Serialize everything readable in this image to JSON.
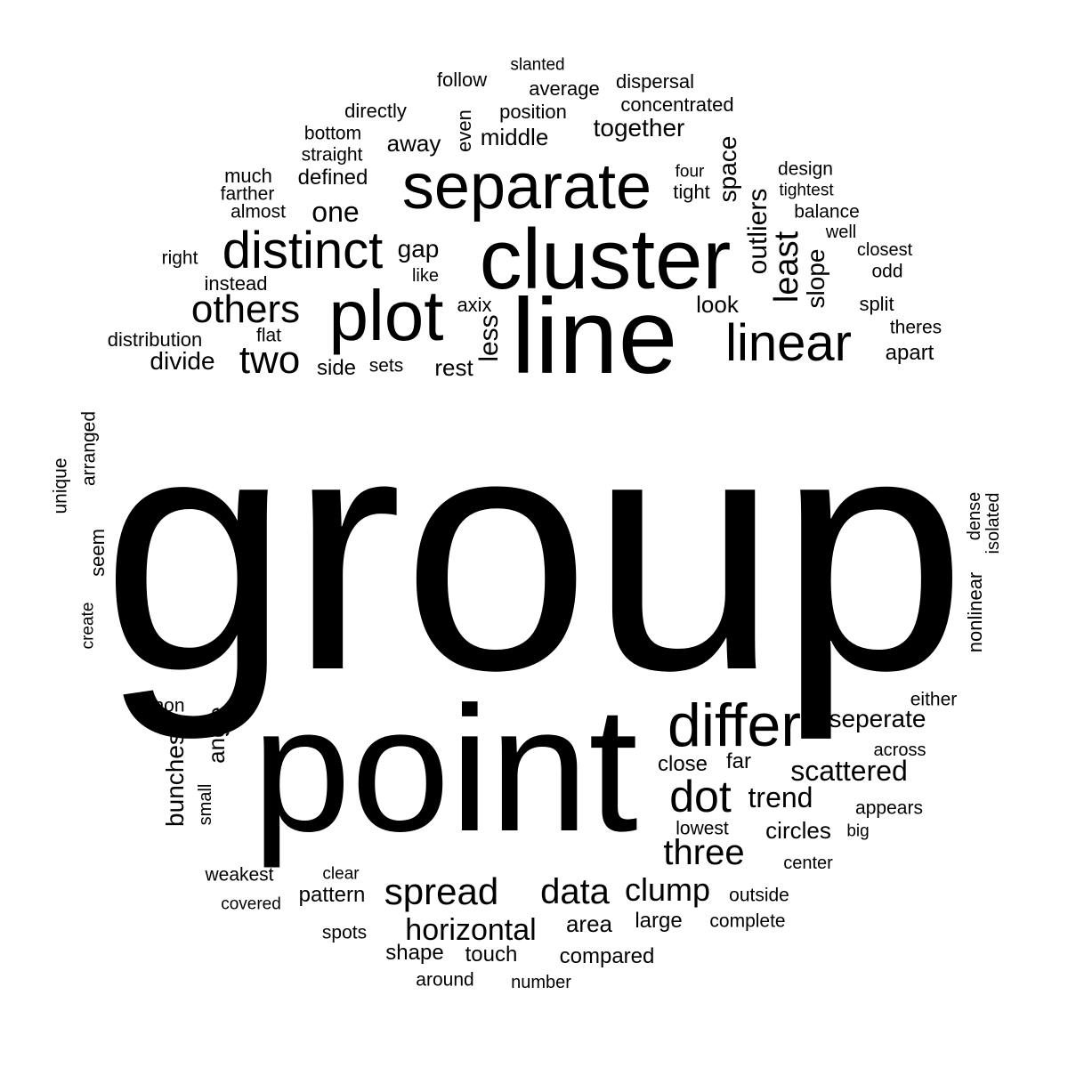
{
  "text_color": "#000000",
  "background_color": "#ffffff",
  "words": [
    {
      "text": "group",
      "rotated": false
    },
    {
      "text": "point",
      "rotated": false
    },
    {
      "text": "line",
      "rotated": false
    },
    {
      "text": "cluster",
      "rotated": false
    },
    {
      "text": "separate",
      "rotated": false
    },
    {
      "text": "plot",
      "rotated": false
    },
    {
      "text": "distinct",
      "rotated": false
    },
    {
      "text": "linear",
      "rotated": false
    },
    {
      "text": "differ",
      "rotated": false
    },
    {
      "text": "others",
      "rotated": false
    },
    {
      "text": "two",
      "rotated": false
    },
    {
      "text": "dot",
      "rotated": false
    },
    {
      "text": "three",
      "rotated": false
    },
    {
      "text": "spread",
      "rotated": false
    },
    {
      "text": "data",
      "rotated": false
    },
    {
      "text": "clump",
      "rotated": false
    },
    {
      "text": "horizontal",
      "rotated": false
    },
    {
      "text": "least",
      "rotated": true
    },
    {
      "text": "outliers",
      "rotated": true
    },
    {
      "text": "less",
      "rotated": true
    },
    {
      "text": "slope",
      "rotated": true
    },
    {
      "text": "space",
      "rotated": true
    },
    {
      "text": "together",
      "rotated": false
    },
    {
      "text": "trend",
      "rotated": false
    },
    {
      "text": "scattered",
      "rotated": false
    },
    {
      "text": "seperate",
      "rotated": false
    },
    {
      "text": "one",
      "rotated": false
    },
    {
      "text": "gap",
      "rotated": false
    },
    {
      "text": "middle",
      "rotated": false
    },
    {
      "text": "away",
      "rotated": false
    },
    {
      "text": "divide",
      "rotated": false
    },
    {
      "text": "look",
      "rotated": false
    },
    {
      "text": "rest",
      "rotated": false
    },
    {
      "text": "angle",
      "rotated": true
    },
    {
      "text": "bunches",
      "rotated": true
    },
    {
      "text": "circles",
      "rotated": false
    },
    {
      "text": "defined",
      "rotated": false
    },
    {
      "text": "area",
      "rotated": false
    },
    {
      "text": "large",
      "rotated": false
    },
    {
      "text": "close",
      "rotated": false
    },
    {
      "text": "far",
      "rotated": false
    },
    {
      "text": "side",
      "rotated": false
    },
    {
      "text": "pattern",
      "rotated": false
    },
    {
      "text": "shape",
      "rotated": false
    },
    {
      "text": "touch",
      "rotated": false
    },
    {
      "text": "compared",
      "rotated": false
    },
    {
      "text": "dispersal",
      "rotated": false
    },
    {
      "text": "concentrated",
      "rotated": false
    },
    {
      "text": "position",
      "rotated": false
    },
    {
      "text": "average",
      "rotated": false
    },
    {
      "text": "follow",
      "rotated": false
    },
    {
      "text": "slanted",
      "rotated": false
    },
    {
      "text": "directly",
      "rotated": false
    },
    {
      "text": "bottom",
      "rotated": false
    },
    {
      "text": "straight",
      "rotated": false
    },
    {
      "text": "even",
      "rotated": true
    },
    {
      "text": "much",
      "rotated": false
    },
    {
      "text": "farther",
      "rotated": false
    },
    {
      "text": "almost",
      "rotated": false
    },
    {
      "text": "four",
      "rotated": false
    },
    {
      "text": "tight",
      "rotated": false
    },
    {
      "text": "design",
      "rotated": false
    },
    {
      "text": "tightest",
      "rotated": false
    },
    {
      "text": "balance",
      "rotated": false
    },
    {
      "text": "well",
      "rotated": false
    },
    {
      "text": "closest",
      "rotated": false
    },
    {
      "text": "odd",
      "rotated": false
    },
    {
      "text": "split",
      "rotated": false
    },
    {
      "text": "theres",
      "rotated": false
    },
    {
      "text": "apart",
      "rotated": false
    },
    {
      "text": "right",
      "rotated": false
    },
    {
      "text": "instead",
      "rotated": false
    },
    {
      "text": "like",
      "rotated": false
    },
    {
      "text": "axix",
      "rotated": false
    },
    {
      "text": "distribution",
      "rotated": false
    },
    {
      "text": "flat",
      "rotated": false
    },
    {
      "text": "sets",
      "rotated": false
    },
    {
      "text": "unique",
      "rotated": true
    },
    {
      "text": "arranged",
      "rotated": true
    },
    {
      "text": "seem",
      "rotated": true
    },
    {
      "text": "create",
      "rotated": true
    },
    {
      "text": "dense",
      "rotated": true
    },
    {
      "text": "isolated",
      "rotated": true
    },
    {
      "text": "nonlinear",
      "rotated": true
    },
    {
      "text": "non",
      "rotated": false
    },
    {
      "text": "small",
      "rotated": true
    },
    {
      "text": "either",
      "rotated": false
    },
    {
      "text": "across",
      "rotated": false
    },
    {
      "text": "appears",
      "rotated": false
    },
    {
      "text": "big",
      "rotated": false
    },
    {
      "text": "lowest",
      "rotated": false
    },
    {
      "text": "center",
      "rotated": false
    },
    {
      "text": "outside",
      "rotated": false
    },
    {
      "text": "complete",
      "rotated": false
    },
    {
      "text": "weakest",
      "rotated": false
    },
    {
      "text": "clear",
      "rotated": false
    },
    {
      "text": "covered",
      "rotated": false
    },
    {
      "text": "spots",
      "rotated": false
    },
    {
      "text": "around",
      "rotated": false
    },
    {
      "text": "number",
      "rotated": false
    }
  ]
}
